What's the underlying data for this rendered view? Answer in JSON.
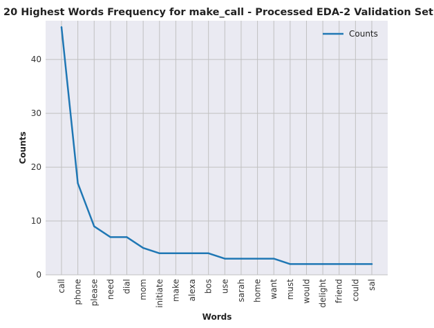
{
  "chart_data": {
    "type": "line",
    "title": "20 Highest Words Frequency for make_call - Processed EDA-2 Validation Set",
    "xlabel": "Words",
    "ylabel": "Counts",
    "categories": [
      "call",
      "phone",
      "please",
      "need",
      "dial",
      "mom",
      "initiate",
      "make",
      "alexa",
      "bos",
      "use",
      "sarah",
      "home",
      "want",
      "must",
      "would",
      "delight",
      "friend",
      "could",
      "sal"
    ],
    "series": [
      {
        "name": "Counts",
        "values": [
          46,
          17,
          9,
          7,
          7,
          5,
          4,
          4,
          4,
          4,
          3,
          3,
          3,
          3,
          2,
          2,
          2,
          2,
          2,
          2
        ],
        "color": "#1f77b4"
      }
    ],
    "ylim": [
      0,
      47.2
    ],
    "yticks": [
      0,
      10,
      20,
      30,
      40
    ],
    "grid": true,
    "legend_position": "top-right",
    "background_color": "#eaeaf2",
    "grid_color": "#c0c0c0"
  }
}
